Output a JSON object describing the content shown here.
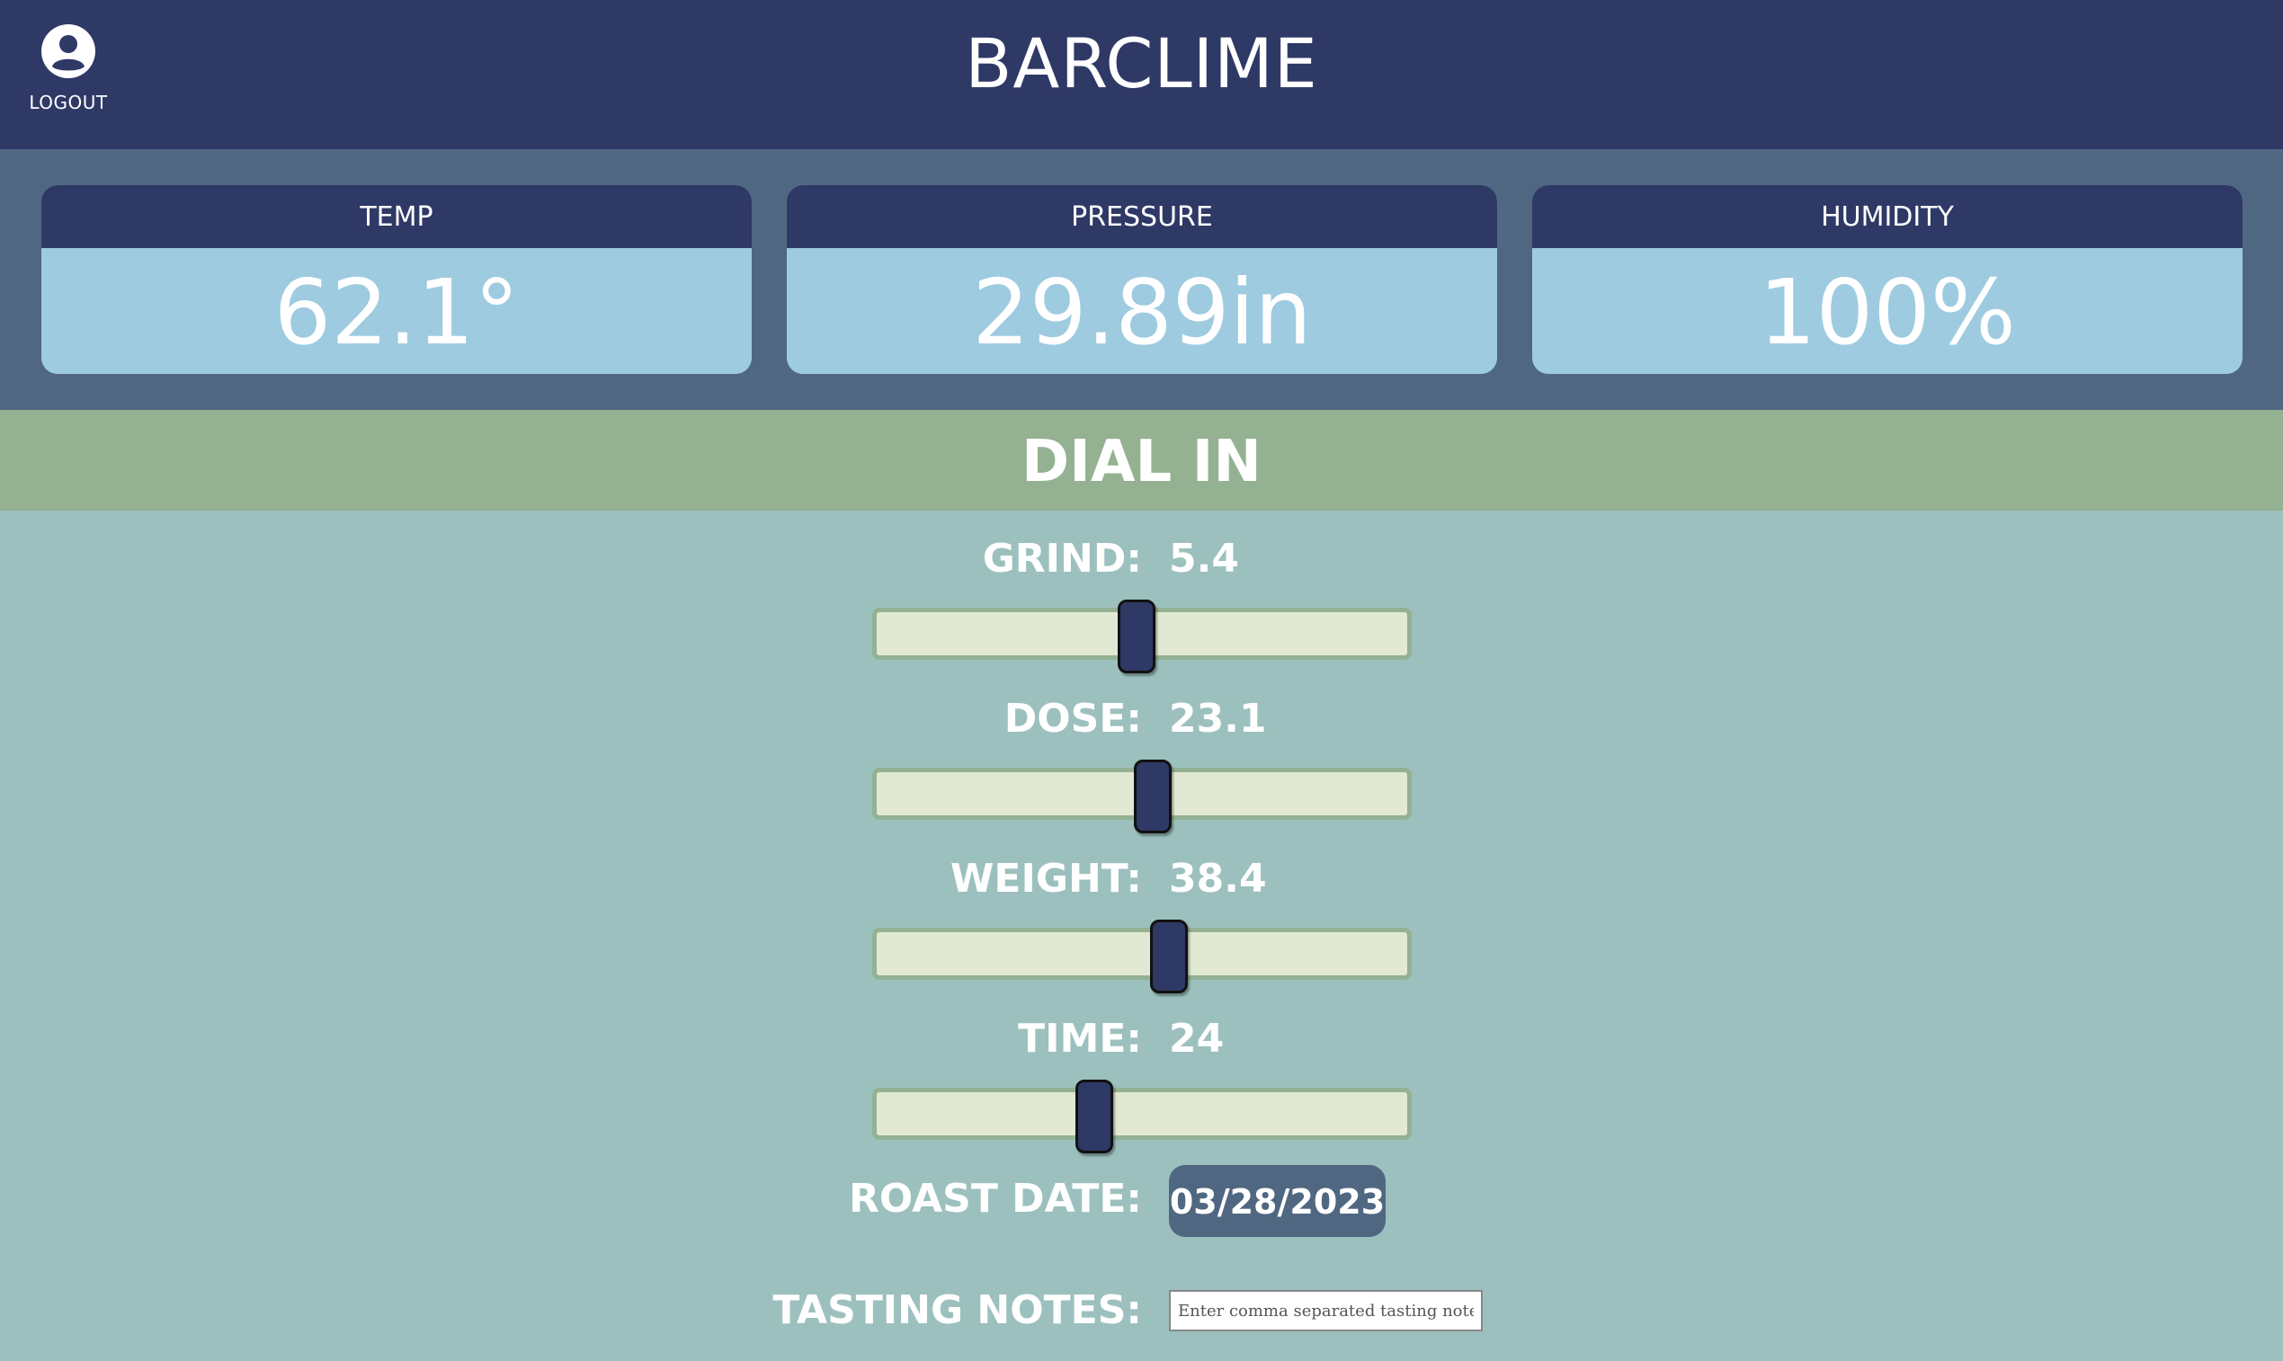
{
  "header": {
    "title": "BARCLIME",
    "logout_label": "LOGOUT"
  },
  "stats": [
    {
      "label": "TEMP",
      "value": "62.1°"
    },
    {
      "label": "PRESSURE",
      "value": "29.89in"
    },
    {
      "label": "HUMIDITY",
      "value": "100%"
    }
  ],
  "dial": {
    "title": "DIAL IN",
    "grind": {
      "label": "GRIND:",
      "value": "5.4",
      "fraction": 0.49
    },
    "dose": {
      "label": "DOSE:",
      "value": "23.1",
      "fraction": 0.52
    },
    "weight": {
      "label": "WEIGHT:",
      "value": "38.4",
      "fraction": 0.55
    },
    "time": {
      "label": "TIME:",
      "value": "24",
      "fraction": 0.41
    },
    "roast_date": {
      "label": "ROAST DATE:",
      "value": "03/28/2023"
    },
    "tasting_notes": {
      "label": "TASTING NOTES:",
      "value": "",
      "placeholder": "Enter comma separated tasting notes"
    }
  },
  "colors": {
    "header": "#2f3966",
    "stats_band": "#506782",
    "card_body": "#9ecbe0",
    "dial_band": "#94b191",
    "page_bg": "#9cc0be",
    "track": "#e1e8d3"
  },
  "icons": {
    "logout": "user-circle-icon"
  }
}
